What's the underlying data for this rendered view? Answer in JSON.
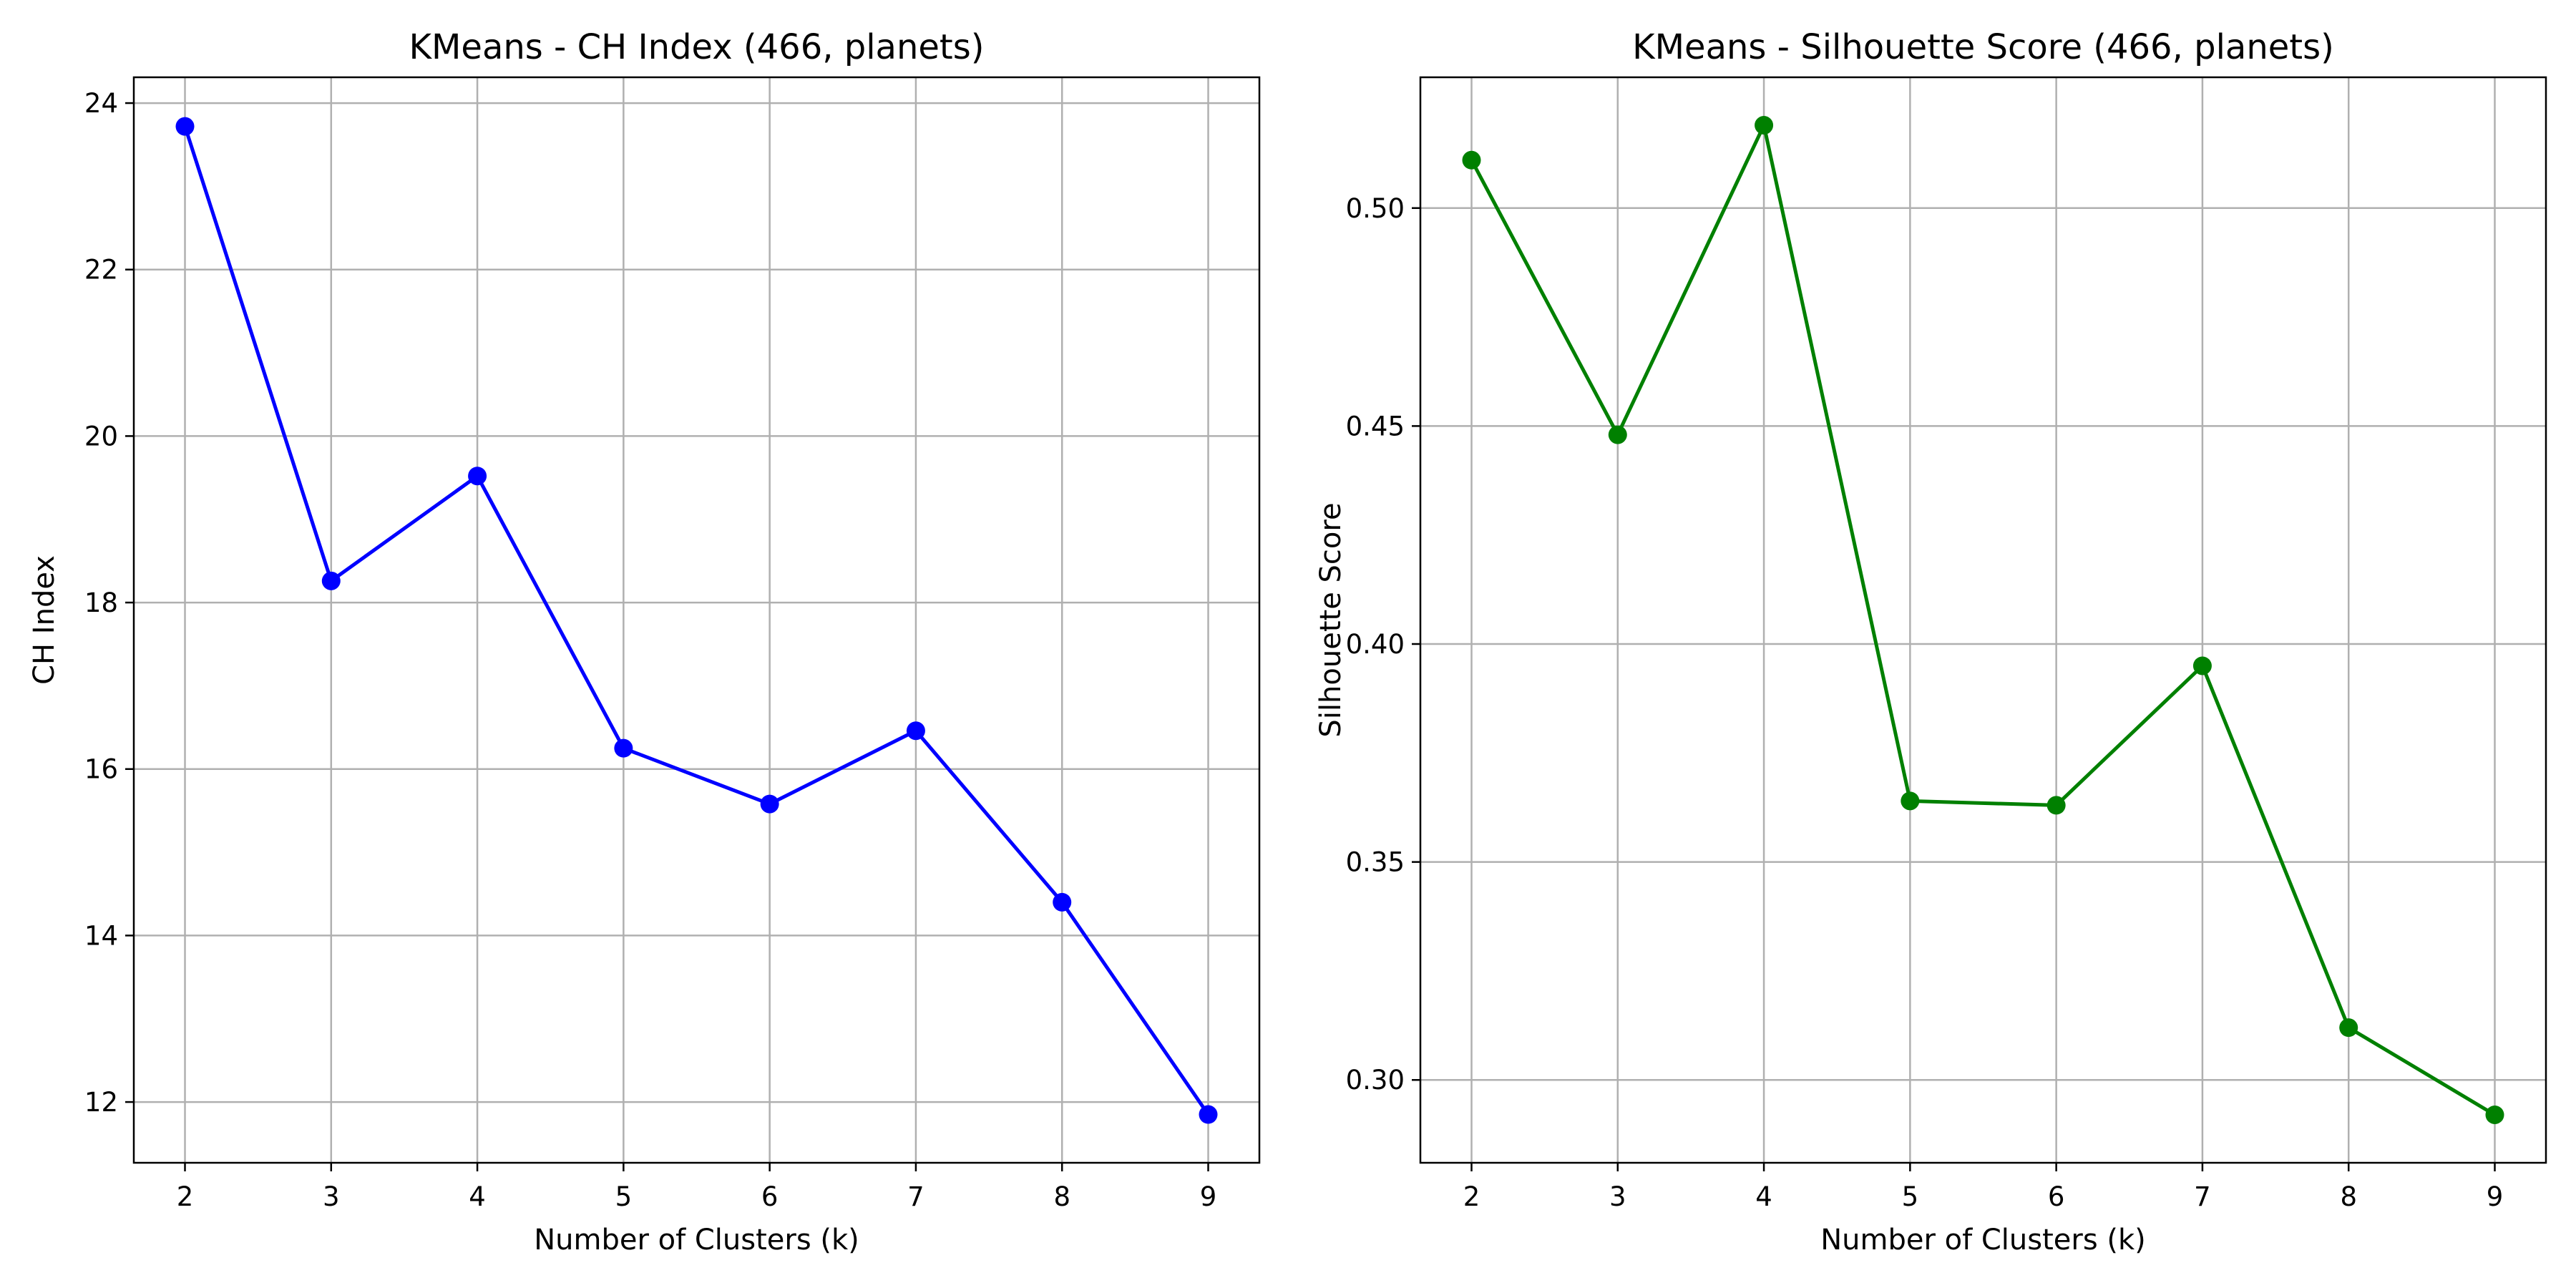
{
  "chart_data": [
    {
      "type": "line",
      "title": "KMeans - CH Index (466, planets)",
      "xlabel": "Number of Clusters (k)",
      "ylabel": "CH Index",
      "x": [
        2,
        3,
        4,
        5,
        6,
        7,
        8,
        9
      ],
      "x_ticks": [
        "2",
        "3",
        "4",
        "5",
        "6",
        "7",
        "8",
        "9"
      ],
      "series": [
        {
          "values": [
            23.72,
            18.26,
            19.52,
            16.25,
            15.58,
            16.46,
            14.4,
            11.85
          ]
        }
      ],
      "xlim": [
        1.65,
        9.35
      ],
      "ylim": [
        11.27,
        24.31
      ],
      "y_ticks": [
        12,
        14,
        16,
        18,
        20,
        22,
        24
      ],
      "y_tick_labels": [
        "12",
        "14",
        "16",
        "18",
        "20",
        "22",
        "24"
      ],
      "grid": true,
      "line_color": "#0000ff",
      "marker": "circle"
    },
    {
      "type": "line",
      "title": "KMeans - Silhouette Score (466, planets)",
      "xlabel": "Number of Clusters (k)",
      "ylabel": "Silhouette Score",
      "x": [
        2,
        3,
        4,
        5,
        6,
        7,
        8,
        9
      ],
      "x_ticks": [
        "2",
        "3",
        "4",
        "5",
        "6",
        "7",
        "8",
        "9"
      ],
      "series": [
        {
          "values": [
            0.511,
            0.448,
            0.519,
            0.364,
            0.363,
            0.395,
            0.312,
            0.292
          ]
        }
      ],
      "xlim": [
        1.65,
        9.35
      ],
      "ylim": [
        0.281,
        0.53
      ],
      "y_ticks": [
        0.3,
        0.35,
        0.4,
        0.45,
        0.5
      ],
      "y_tick_labels": [
        "0.30",
        "0.35",
        "0.40",
        "0.45",
        "0.50"
      ],
      "grid": true,
      "line_color": "#008000",
      "marker": "circle"
    }
  ]
}
